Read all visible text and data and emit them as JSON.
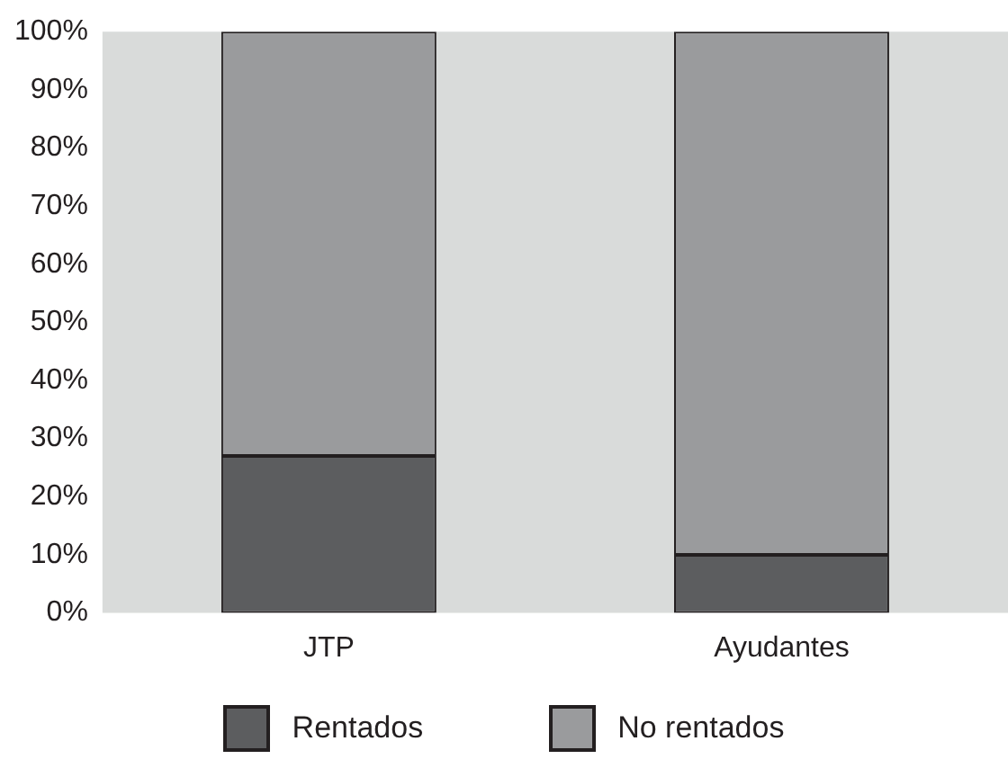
{
  "chart_data": {
    "type": "bar",
    "stacked": true,
    "categories": [
      "JTP",
      "Ayudantes"
    ],
    "series": [
      {
        "name": "Rentados",
        "color": "#5c5d5f",
        "values": [
          27,
          10
        ]
      },
      {
        "name": "No rentados",
        "color": "#9a9b9d",
        "values": [
          73,
          90
        ]
      }
    ],
    "ylim": [
      0,
      100
    ],
    "yticks": [
      {
        "value": 0,
        "label": "0%"
      },
      {
        "value": 10,
        "label": "10%"
      },
      {
        "value": 20,
        "label": "20%"
      },
      {
        "value": 30,
        "label": "30%"
      },
      {
        "value": 40,
        "label": "40%"
      },
      {
        "value": 50,
        "label": "50%"
      },
      {
        "value": 60,
        "label": "60%"
      },
      {
        "value": 70,
        "label": "70%"
      },
      {
        "value": 80,
        "label": "80%"
      },
      {
        "value": 90,
        "label": "90%"
      },
      {
        "value": 100,
        "label": "100%"
      }
    ],
    "grid": false,
    "legend": "bottom"
  }
}
